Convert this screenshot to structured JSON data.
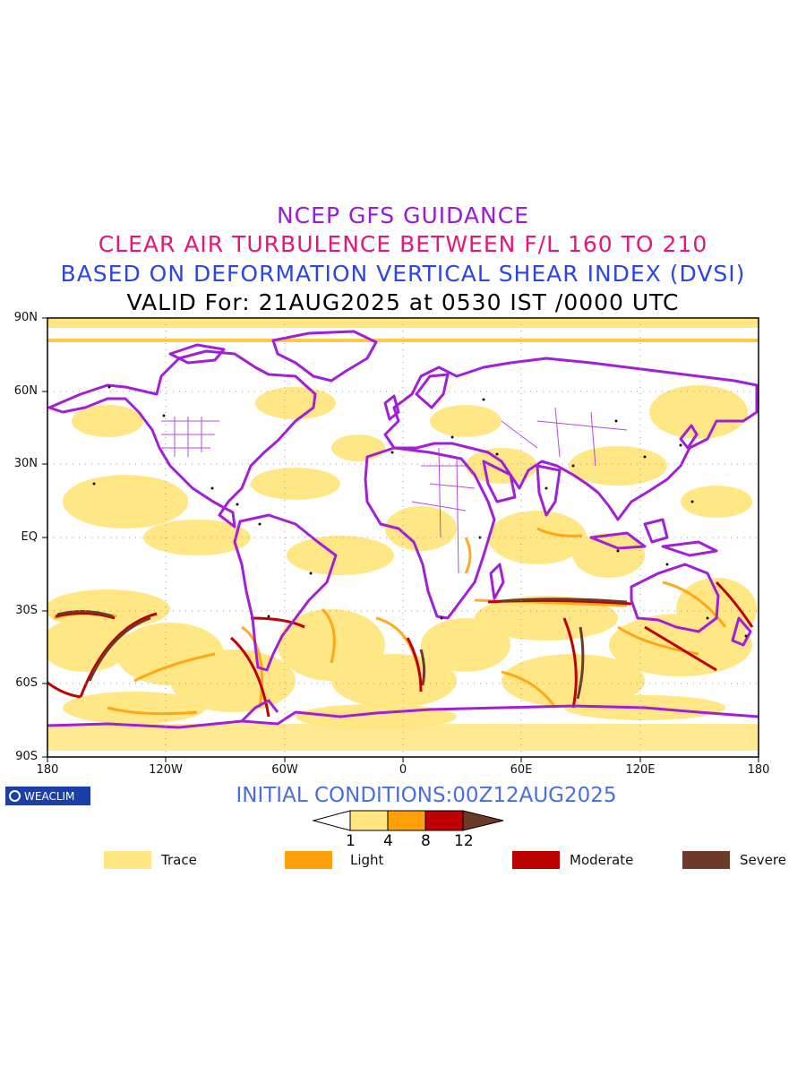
{
  "titles": {
    "line1": "NCEP GFS GUIDANCE",
    "line2": "CLEAR AIR TURBULENCE BETWEEN F/L 160 TO 210",
    "line3": "BASED ON DEFORMATION VERTICAL SHEAR INDEX (DVSI)",
    "line4": "VALID For: 21AUG2025 at 0530 IST /0000 UTC"
  },
  "axes": {
    "lat_labels": [
      "90N",
      "60N",
      "30N",
      "EQ",
      "30S",
      "60S",
      "90S"
    ],
    "lon_labels": [
      "180",
      "120W",
      "60W",
      "0",
      "60E",
      "120E",
      "180"
    ]
  },
  "logo": {
    "text": "WEACLIM",
    "icon": "circle-c-icon"
  },
  "initial_conditions": "INITIAL CONDITIONS:00Z12AUG2025",
  "colorbar": {
    "ticks": [
      "1",
      "4",
      "8",
      "12"
    ],
    "colors": [
      "#ffffff",
      "#ffe680",
      "#ff9f0a",
      "#c00000",
      "#6b3a2a"
    ]
  },
  "legend": [
    {
      "label": "Trace",
      "color": "#ffe680"
    },
    {
      "label": "Light",
      "color": "#ffa10a"
    },
    {
      "label": "Moderate",
      "color": "#c00000"
    },
    {
      "label": "Severe",
      "color": "#6b3a2a"
    }
  ],
  "colors": {
    "coast": "#a21fd6",
    "trace": "#ffe680",
    "light": "#ffa10a",
    "moderate": "#c00000",
    "severe": "#6b3a2a"
  }
}
